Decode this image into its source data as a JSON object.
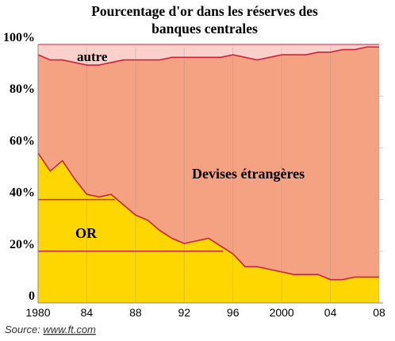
{
  "chart_data": {
    "type": "area",
    "title_line1": "Pourcentage d'or dans les réserves des",
    "title_line2": "banques centrales",
    "x": [
      1980,
      1981,
      1982,
      1983,
      1984,
      1985,
      1986,
      1987,
      1988,
      1989,
      1990,
      1991,
      1992,
      1993,
      1994,
      1995,
      1996,
      1997,
      1998,
      1999,
      2000,
      2001,
      2002,
      2003,
      2004,
      2005,
      2006,
      2007,
      2008
    ],
    "series": [
      {
        "name": "OR",
        "color": "#ffd700",
        "values": [
          58,
          51,
          55,
          48,
          42,
          41,
          42,
          38,
          34,
          32,
          28,
          25,
          23,
          24,
          25,
          22,
          19,
          14,
          14,
          13,
          12,
          11,
          11,
          11,
          9,
          9,
          10,
          10,
          10
        ]
      },
      {
        "name": "Devises étrangères",
        "color": "#f5a283",
        "values": [
          38,
          43,
          39,
          45,
          50,
          51,
          51,
          56,
          60,
          62,
          66,
          70,
          72,
          71,
          70,
          73,
          77,
          81,
          80,
          82,
          84,
          85,
          85,
          86,
          88,
          89,
          88,
          89,
          89
        ]
      },
      {
        "name": "autre",
        "color": "#fad0cb",
        "values": [
          4,
          6,
          6,
          7,
          8,
          8,
          7,
          6,
          6,
          6,
          6,
          5,
          5,
          5,
          5,
          5,
          4,
          5,
          6,
          5,
          4,
          4,
          4,
          3,
          3,
          2,
          2,
          1,
          1
        ]
      }
    ],
    "y_ticks": [
      "0",
      "20%",
      "40%",
      "60%",
      "80%",
      "100%"
    ],
    "y_tick_values": [
      0,
      20,
      40,
      60,
      80,
      100
    ],
    "x_ticks": [
      "1980",
      "84",
      "88",
      "92",
      "96",
      "2000",
      "04",
      "08"
    ],
    "x_tick_values": [
      1980,
      1984,
      1988,
      1992,
      1996,
      2000,
      2004,
      2008
    ],
    "xlim": [
      1980,
      2008
    ],
    "ylim": [
      0,
      100
    ],
    "grid": true,
    "line_color": "#c8243c",
    "annotations": {
      "autre": "autre",
      "devises": "Devises étrangères",
      "or": "OR"
    },
    "source_prefix": "Source: ",
    "source_link": "www.ft.com"
  }
}
